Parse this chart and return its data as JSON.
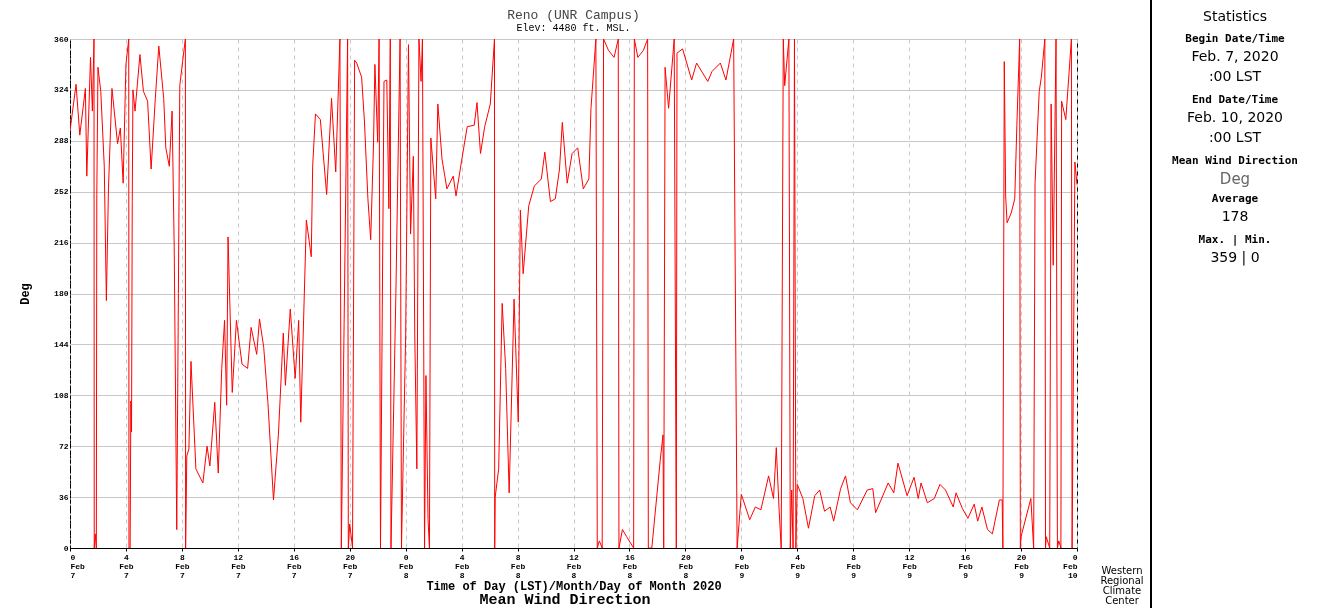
{
  "chart_data": {
    "type": "line",
    "title": "Reno (UNR Campus)",
    "subtitle": "Elev: 4480 ft. MSL.",
    "xlabel": "Time of Day (LST)/Month/Day of Month 2020",
    "ylabel": "Deg",
    "xlim": [
      "2020-02-07T00:00",
      "2020-02-10T00:00"
    ],
    "ylim": [
      0,
      360
    ],
    "xticks": [
      {
        "value": "2020-02-07T00:00",
        "label": "0\nFeb\n7"
      },
      {
        "value": "2020-02-07T04:00",
        "label": "4\nFeb\n7"
      },
      {
        "value": "2020-02-07T08:00",
        "label": "8\nFeb\n7"
      },
      {
        "value": "2020-02-07T12:00",
        "label": "12\nFeb\n7"
      },
      {
        "value": "2020-02-07T16:00",
        "label": "16\nFeb\n7"
      },
      {
        "value": "2020-02-07T20:00",
        "label": "20\nFeb\n7"
      },
      {
        "value": "2020-02-08T00:00",
        "label": "0\nFeb\n8"
      },
      {
        "value": "2020-02-08T04:00",
        "label": "4\nFeb\n8"
      },
      {
        "value": "2020-02-08T08:00",
        "label": "8\nFeb\n8"
      },
      {
        "value": "2020-02-08T12:00",
        "label": "12\nFeb\n8"
      },
      {
        "value": "2020-02-08T16:00",
        "label": "16\nFeb\n8"
      },
      {
        "value": "2020-02-08T20:00",
        "label": "20\nFeb\n8"
      },
      {
        "value": "2020-02-09T00:00",
        "label": "0\nFeb\n9"
      },
      {
        "value": "2020-02-09T04:00",
        "label": "4\nFeb\n9"
      },
      {
        "value": "2020-02-09T08:00",
        "label": "8\nFeb\n9"
      },
      {
        "value": "2020-02-09T12:00",
        "label": "12\nFeb\n9"
      },
      {
        "value": "2020-02-09T16:00",
        "label": "16\nFeb\n9"
      },
      {
        "value": "2020-02-09T20:00",
        "label": "20\nFeb\n9"
      },
      {
        "value": "2020-02-10T00:00",
        "label": "0\nFeb\n10"
      }
    ],
    "yticks": [
      0,
      36,
      72,
      108,
      144,
      180,
      216,
      252,
      288,
      324,
      360
    ],
    "grid": true,
    "line_style": "solid",
    "annotations": [
      "Mean Wind Direction",
      "Statistics",
      "Begin Date/Time",
      "Feb. 7, 2020",
      ":00 LST",
      "End Date/Time",
      "Feb. 10, 2020",
      ":00 LST",
      "Mean Wind Direction",
      "Deg",
      "Average",
      "178",
      "Max. | Min.",
      "359 | 0",
      "Western Regional Climate Center"
    ],
    "series": [
      {
        "color": "#ff0000",
        "x": [
          "2020-02-07T00:00",
          "2020-02-07T00:26",
          "2020-02-07T00:42",
          "2020-02-07T01:06",
          "2020-02-07T01:12",
          "2020-02-07T01:28",
          "2020-02-07T01:36",
          "2020-02-07T01:43",
          "2020-02-07T01:44",
          "2020-02-07T01:48",
          "2020-02-07T01:53",
          "2020-02-07T01:55",
          "2020-02-07T02:00",
          "2020-02-07T02:12",
          "2020-02-07T02:27",
          "2020-02-07T02:36",
          "2020-02-07T02:45",
          "2020-02-07T03:00",
          "2020-02-07T03:24",
          "2020-02-07T03:36",
          "2020-02-07T03:48",
          "2020-02-07T04:00",
          "2020-02-07T04:12",
          "2020-02-07T04:13",
          "2020-02-07T04:18",
          "2020-02-07T04:21",
          "2020-02-07T04:24",
          "2020-02-07T04:27",
          "2020-02-07T04:30",
          "2020-02-07T04:39",
          "2020-02-07T05:00",
          "2020-02-07T05:15",
          "2020-02-07T05:33",
          "2020-02-07T05:48",
          "2020-02-07T06:06",
          "2020-02-07T06:21",
          "2020-02-07T06:42",
          "2020-02-07T06:51",
          "2020-02-07T07:06",
          "2020-02-07T07:18",
          "2020-02-07T07:27",
          "2020-02-07T07:38",
          "2020-02-07T07:45",
          "2020-02-07T07:51",
          "2020-02-07T08:03",
          "2020-02-07T08:15",
          "2020-02-07T08:16",
          "2020-02-07T08:21",
          "2020-02-07T08:30",
          "2020-02-07T08:39",
          "2020-02-07T09:00",
          "2020-02-07T09:30",
          "2020-02-07T09:48",
          "2020-02-07T10:00",
          "2020-02-07T10:21",
          "2020-02-07T10:36",
          "2020-02-07T10:51",
          "2020-02-07T11:03",
          "2020-02-07T11:12",
          "2020-02-07T11:18",
          "2020-02-07T11:36",
          "2020-02-07T11:54",
          "2020-02-07T12:18",
          "2020-02-07T12:42",
          "2020-02-07T12:57",
          "2020-02-07T13:21",
          "2020-02-07T13:33",
          "2020-02-07T13:51",
          "2020-02-07T14:09",
          "2020-02-07T14:33",
          "2020-02-07T14:54",
          "2020-02-07T15:15",
          "2020-02-07T15:24",
          "2020-02-07T15:45",
          "2020-02-07T16:06",
          "2020-02-07T16:21",
          "2020-02-07T16:30",
          "2020-02-07T16:54",
          "2020-02-07T17:15",
          "2020-02-07T17:21",
          "2020-02-07T17:33",
          "2020-02-07T17:54",
          "2020-02-07T18:21",
          "2020-02-07T18:42",
          "2020-02-07T19:00",
          "2020-02-07T19:18",
          "2020-02-07T19:24",
          "2020-02-07T19:51",
          "2020-02-07T19:54",
          "2020-02-07T20:00",
          "2020-02-07T20:12",
          "2020-02-07T20:21",
          "2020-02-07T20:30",
          "2020-02-07T20:51",
          "2020-02-07T21:03",
          "2020-02-07T21:18",
          "2020-02-07T21:30",
          "2020-02-07T21:42",
          "2020-02-07T21:48",
          "2020-02-07T22:00",
          "2020-02-07T22:06",
          "2020-02-07T22:12",
          "2020-02-07T22:27",
          "2020-02-07T22:39",
          "2020-02-07T22:48",
          "2020-02-07T22:54",
          "2020-02-07T22:57",
          "2020-02-07T23:18",
          "2020-02-07T23:36",
          "2020-02-07T23:42",
          "2020-02-08T00:00",
          "2020-02-08T00:12",
          "2020-02-08T00:21",
          "2020-02-08T00:33",
          "2020-02-08T00:39",
          "2020-02-08T00:48",
          "2020-02-08T00:57",
          "2020-02-08T01:06",
          "2020-02-08T01:12",
          "2020-02-08T01:21",
          "2020-02-08T01:27",
          "2020-02-08T01:36",
          "2020-02-08T01:42",
          "2020-02-08T01:48",
          "2020-02-08T02:09",
          "2020-02-08T02:18",
          "2020-02-08T02:36",
          "2020-02-08T02:57",
          "2020-02-08T03:24",
          "2020-02-08T03:36",
          "2020-02-08T04:00",
          "2020-02-08T04:24",
          "2020-02-08T04:54",
          "2020-02-08T05:06",
          "2020-02-08T05:21",
          "2020-02-08T05:39",
          "2020-02-08T06:03",
          "2020-02-08T06:21",
          "2020-02-08T06:22",
          "2020-02-08T06:24",
          "2020-02-08T06:39",
          "2020-02-08T06:54",
          "2020-02-08T07:09",
          "2020-02-08T07:24",
          "2020-02-08T07:45",
          "2020-02-08T08:03",
          "2020-02-08T08:12",
          "2020-02-08T08:24",
          "2020-02-08T08:48",
          "2020-02-08T09:12",
          "2020-02-08T09:42",
          "2020-02-08T09:57",
          "2020-02-08T10:21",
          "2020-02-08T10:42",
          "2020-02-08T11:00",
          "2020-02-08T11:12",
          "2020-02-08T11:33",
          "2020-02-08T11:54",
          "2020-02-08T12:18",
          "2020-02-08T12:42",
          "2020-02-08T13:06",
          "2020-02-08T13:15",
          "2020-02-08T13:36",
          "2020-02-08T13:42",
          "2020-02-08T13:51",
          "2020-02-08T14:03",
          "2020-02-08T14:09",
          "2020-02-08T14:30",
          "2020-02-08T14:54",
          "2020-02-08T15:12",
          "2020-02-08T15:15",
          "2020-02-08T15:30",
          "2020-02-08T15:48",
          "2020-02-08T16:18",
          "2020-02-08T16:21",
          "2020-02-08T16:36",
          "2020-02-08T17:00",
          "2020-02-08T17:18",
          "2020-02-08T17:21",
          "2020-02-08T17:36",
          "2020-02-08T18:12",
          "2020-02-08T18:24",
          "2020-02-08T18:27",
          "2020-02-08T18:33",
          "2020-02-08T18:48",
          "2020-02-08T19:12",
          "2020-02-08T19:21",
          "2020-02-08T19:24",
          "2020-02-08T19:48",
          "2020-02-08T20:27",
          "2020-02-08T20:48",
          "2020-02-08T21:36",
          "2020-02-08T21:54",
          "2020-02-08T22:30",
          "2020-02-08T22:54",
          "2020-02-08T23:27",
          "2020-02-08T23:42",
          "2020-02-09T00:00",
          "2020-02-09T00:36",
          "2020-02-09T01:00",
          "2020-02-09T01:24",
          "2020-02-09T01:57",
          "2020-02-09T02:18",
          "2020-02-09T02:30",
          "2020-02-09T02:42",
          "2020-02-09T02:51",
          "2020-02-09T03:00",
          "2020-02-09T03:06",
          "2020-02-09T03:24",
          "2020-02-09T03:30",
          "2020-02-09T03:36",
          "2020-02-09T03:42",
          "2020-02-09T03:48",
          "2020-02-09T03:54",
          "2020-02-09T04:00",
          "2020-02-09T04:24",
          "2020-02-09T04:48",
          "2020-02-09T05:15",
          "2020-02-09T05:36",
          "2020-02-09T05:57",
          "2020-02-09T06:21",
          "2020-02-09T06:36",
          "2020-02-09T07:06",
          "2020-02-09T07:27",
          "2020-02-09T07:48",
          "2020-02-09T08:18",
          "2020-02-09T09:00",
          "2020-02-09T09:24",
          "2020-02-09T09:36",
          "2020-02-09T10:30",
          "2020-02-09T10:54",
          "2020-02-09T11:12",
          "2020-02-09T11:51",
          "2020-02-09T12:21",
          "2020-02-09T12:39",
          "2020-02-09T12:51",
          "2020-02-09T13:18",
          "2020-02-09T13:48",
          "2020-02-09T14:12",
          "2020-02-09T14:36",
          "2020-02-09T15:09",
          "2020-02-09T15:21",
          "2020-02-09T15:48",
          "2020-02-09T16:12",
          "2020-02-09T16:39",
          "2020-02-09T16:54",
          "2020-02-09T17:12",
          "2020-02-09T17:36",
          "2020-02-09T17:57",
          "2020-02-09T18:27",
          "2020-02-09T18:39",
          "2020-02-09T18:42",
          "2020-02-09T18:48",
          "2020-02-09T18:54",
          "2020-02-09T19:00",
          "2020-02-09T19:18",
          "2020-02-09T19:33",
          "2020-02-09T19:42",
          "2020-02-09T19:54",
          "2020-02-09T19:57",
          "2020-02-09T20:00",
          "2020-02-09T20:42",
          "2020-02-09T20:54",
          "2020-02-09T21:00",
          "2020-02-09T21:18",
          "2020-02-09T21:27",
          "2020-02-09T21:42",
          "2020-02-09T21:45",
          "2020-02-09T21:48",
          "2020-02-09T22:03",
          "2020-02-09T22:09",
          "2020-02-09T22:18",
          "2020-02-09T22:30",
          "2020-02-09T22:36",
          "2020-02-09T22:42",
          "2020-02-09T22:51",
          "2020-02-09T22:54",
          "2020-02-09T23:12",
          "2020-02-09T23:36",
          "2020-02-09T23:39",
          "2020-02-09T23:51",
          "2020-02-10T00:00"
        ],
        "values": [
          295,
          328,
          292,
          325,
          263,
          347,
          309,
          360,
          0,
          10,
          0,
          250,
          340,
          323,
          270,
          175,
          254,
          325,
          286,
          297,
          258,
          342,
          360,
          0,
          0,
          104,
          82,
          245,
          324,
          309,
          349,
          323,
          316,
          268,
          318,
          355,
          318,
          283,
          270,
          309,
          213,
          13,
          180,
          327,
          344,
          360,
          0,
          65,
          70,
          132,
          56,
          46,
          72,
          58,
          103,
          53,
          127,
          161,
          101,
          220,
          110,
          161,
          130,
          127,
          156,
          137,
          162,
          142,
          103,
          34,
          80,
          152,
          115,
          169,
          120,
          161,
          89,
          232,
          206,
          270,
          307,
          303,
          250,
          318,
          266,
          360,
          0,
          360,
          0,
          17,
          0,
          345,
          343,
          333,
          302,
          247,
          218,
          285,
          342,
          287,
          360,
          0,
          330,
          331,
          240,
          360,
          0,
          180,
          360,
          0,
          150,
          356,
          222,
          277,
          151,
          56,
          360,
          330,
          360,
          0,
          122,
          20,
          0,
          290,
          247,
          314,
          275,
          254,
          263,
          249,
          274,
          298,
          299,
          315,
          279,
          298,
          314,
          360,
          0,
          36,
          56,
          173,
          127,
          39,
          176,
          89,
          239,
          194,
          242,
          256,
          261,
          280,
          245,
          247,
          268,
          301,
          258,
          279,
          283,
          254,
          261,
          311,
          360,
          0,
          5,
          0,
          360,
          352,
          347,
          360,
          0,
          13,
          8,
          0,
          360,
          347,
          352,
          360,
          0,
          0,
          62,
          80,
          0,
          340,
          311,
          360,
          0,
          350,
          353,
          331,
          343,
          330,
          337,
          343,
          331,
          360,
          0,
          38,
          20,
          29,
          27,
          51,
          35,
          71,
          27,
          0,
          360,
          327,
          360,
          0,
          41,
          0,
          360,
          0,
          45,
          35,
          14,
          37,
          41,
          26,
          29,
          19,
          42,
          51,
          32,
          27,
          41,
          42,
          25,
          46,
          39,
          60,
          37,
          50,
          35,
          46,
          32,
          35,
          45,
          41,
          29,
          39,
          28,
          21,
          31,
          19,
          29,
          13,
          10,
          34,
          34,
          0,
          344,
          249,
          230,
          237,
          247,
          299,
          360,
          0,
          8,
          35,
          0,
          258,
          323,
          333,
          360,
          0,
          8,
          0,
          314,
          200,
          360,
          0,
          5,
          0,
          316,
          303,
          360,
          0,
          273,
          257
        ]
      }
    ]
  }
}
